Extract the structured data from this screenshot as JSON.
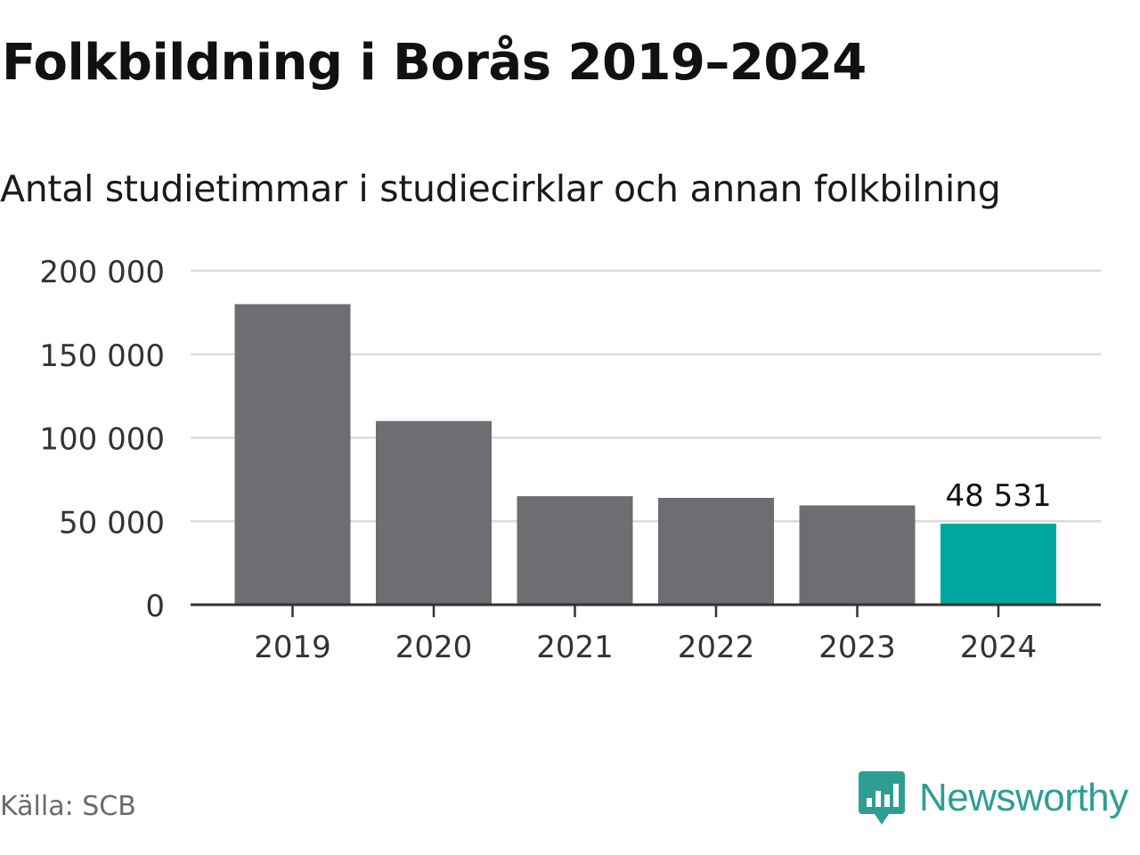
{
  "title": "Folkbildning i Borås 2019–2024",
  "subtitle": "Antal studietimmar i studiecirklar och annan folkbilning",
  "source": "Källa: SCB",
  "brand": {
    "name": "Newsworthy",
    "color": "#2e9e95",
    "icon": "newsworthy-chart-bubble-icon"
  },
  "colors": {
    "bar": "#6e6d72",
    "highlight": "#00a79d",
    "grid": "#dcdcdc",
    "axis": "#333333"
  },
  "chart_data": {
    "type": "bar",
    "categories": [
      "2019",
      "2020",
      "2021",
      "2022",
      "2023",
      "2024"
    ],
    "values": [
      180000,
      110000,
      65000,
      64000,
      59500,
      48531
    ],
    "highlight_index": 5,
    "ylim": [
      0,
      200000
    ],
    "yticks": [
      0,
      50000,
      100000,
      150000,
      200000
    ],
    "ytick_labels": [
      "0",
      "50 000",
      "100 000",
      "150 000",
      "200 000"
    ],
    "data_labels": [
      {
        "index": 5,
        "text": "48 531"
      }
    ],
    "grid": true,
    "legend": "none",
    "xlabel": "",
    "ylabel": ""
  }
}
